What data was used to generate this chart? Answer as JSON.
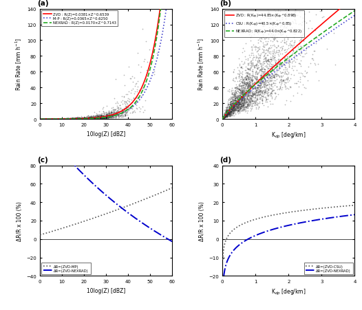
{
  "panel_a": {
    "xlabel": "10log(Z) [dBZ]",
    "ylabel": "Rain Rate [mm h$^{-1}$]",
    "xlim": [
      0,
      60
    ],
    "ylim": [
      0,
      140
    ],
    "xticks": [
      0,
      10,
      20,
      30,
      40,
      50,
      60
    ],
    "yticks": [
      0,
      20,
      40,
      60,
      80,
      100,
      120,
      140
    ],
    "curves": [
      {
        "label": "ZVD : R(Z)=0.0381×Z^0.6539",
        "color": "red",
        "ls": "-",
        "lw": 1.2,
        "a": 0.0381,
        "b": 0.6539
      },
      {
        "label": "M-P : R(Z)=0.0365×Z^0.6250",
        "color": "#4444cc",
        "ls": ":",
        "lw": 1.2,
        "a": 0.0365,
        "b": 0.625
      },
      {
        "label": "NEXRAD : R(Z)=0.0170×Z^0.7143",
        "color": "#22aa22",
        "ls": "--",
        "lw": 1.2,
        "a": 0.017,
        "b": 0.7143
      }
    ]
  },
  "panel_b": {
    "xlabel": "K$_{dp}$ [deg/km]",
    "ylabel": "Rain Rate [mm h$^{-1}$]",
    "xlim": [
      0,
      4
    ],
    "ylim": [
      0,
      140
    ],
    "xticks": [
      0,
      1,
      2,
      3,
      4
    ],
    "yticks": [
      0,
      20,
      40,
      60,
      80,
      100,
      120,
      140
    ],
    "curves": [
      {
        "label": "ZVD : R(K$_{dp}$)=44.85×(K$_{dp}$^0.898)",
        "color": "red",
        "ls": "-",
        "lw": 1.2,
        "a": 44.85,
        "b": 0.898
      },
      {
        "label": "CSU : R(K$_{dp}$)=40.5×(K$_{dp}$^0.85)",
        "color": "#4444cc",
        "ls": ":",
        "lw": 1.2,
        "a": 40.5,
        "b": 0.85
      },
      {
        "label": "NEXRAD : R(K$_{dp}$)=44.0×(K$_{dp}$^0.822)",
        "color": "#22aa22",
        "ls": "--",
        "lw": 1.2,
        "a": 44.0,
        "b": 0.822
      }
    ]
  },
  "panel_c": {
    "xlabel": "10log(Z) [dBZ]",
    "ylabel": "ΔR/R x 100 (%)",
    "xlim": [
      0,
      60
    ],
    "ylim": [
      -40,
      80
    ],
    "xticks": [
      0,
      10,
      20,
      30,
      40,
      50,
      60
    ],
    "yticks": [
      -40,
      -20,
      0,
      20,
      40,
      60,
      80
    ],
    "curves": [
      {
        "label": "ΔR=(ZVD-MP)",
        "color": "#555555",
        "ls": ":",
        "lw": 1.2,
        "a_zvd": 0.0381,
        "b_zvd": 0.6539,
        "a_ref": 0.0365,
        "b_ref": 0.625
      },
      {
        "label": "ΔR=(ZVD-NEXRAD)",
        "color": "#0000cc",
        "ls": "-.",
        "lw": 1.4,
        "a_zvd": 0.0381,
        "b_zvd": 0.6539,
        "a_ref": 0.017,
        "b_ref": 0.7143
      }
    ]
  },
  "panel_d": {
    "xlabel": "K$_{dp}$ [deg/km]",
    "ylabel": "ΔR/R x 100 (%)",
    "xlim": [
      0,
      4
    ],
    "ylim": [
      -20,
      40
    ],
    "xticks": [
      0,
      1,
      2,
      3,
      4
    ],
    "yticks": [
      -20,
      -10,
      0,
      10,
      20,
      30,
      40
    ],
    "curves": [
      {
        "label": "ΔR=(ZVD-CSU)",
        "color": "#555555",
        "ls": ":",
        "lw": 1.2,
        "a_zvd": 44.85,
        "b_zvd": 0.898,
        "a_ref": 40.5,
        "b_ref": 0.85
      },
      {
        "label": "ΔR=(ZVD-NEXRAD)",
        "color": "#0000cc",
        "ls": "-.",
        "lw": 1.4,
        "a_zvd": 44.85,
        "b_zvd": 0.898,
        "a_ref": 44.0,
        "b_ref": 0.822
      }
    ]
  }
}
